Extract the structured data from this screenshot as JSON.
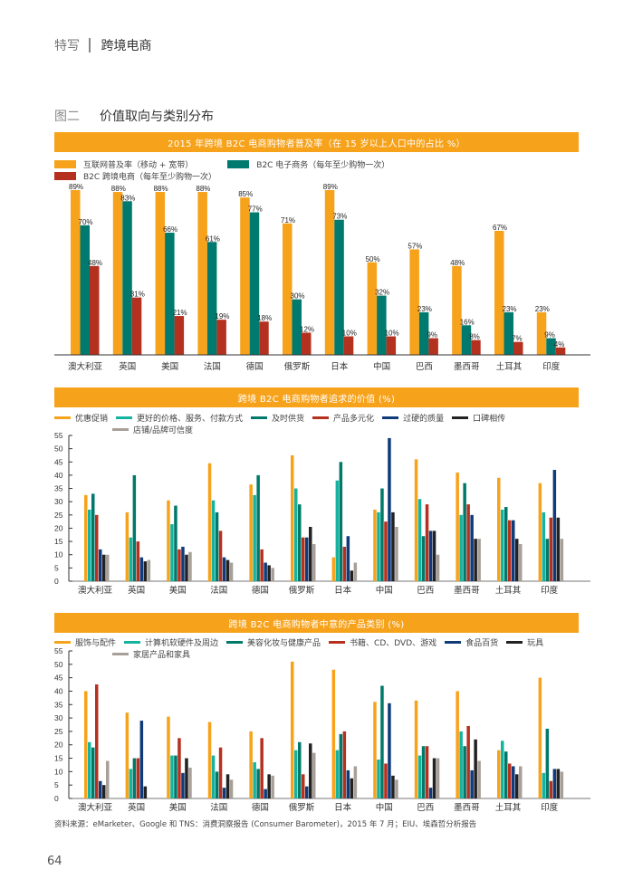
{
  "header": {
    "section": "特写",
    "topic": "跨境电商"
  },
  "figure": {
    "number": "图二",
    "title": "价值取向与类别分布"
  },
  "source": "资料来源：eMarketer、Google 和 TNS：消费洞察报告 (Consumer Barometer)，2015 年 7 月；EIU、埃森哲分析报告",
  "page_number": "64",
  "chart_data": [
    {
      "type": "bar",
      "title": "2015 年跨境 B2C 电商购物者普及率（在 15 岁以上人口中的占比 %）",
      "categories": [
        "澳大利亚",
        "英国",
        "美国",
        "法国",
        "德国",
        "俄罗斯",
        "日本",
        "中国",
        "巴西",
        "墨西哥",
        "土耳其",
        "印度"
      ],
      "ylim": [
        0,
        100
      ],
      "value_suffix": "%",
      "legend_style": "box",
      "series": [
        {
          "name": "互联网普及率（移动 + 宽带）",
          "color": "#f7a21b",
          "values": [
            89,
            88,
            88,
            88,
            85,
            71,
            89,
            50,
            57,
            48,
            67,
            23
          ]
        },
        {
          "name": "B2C 电子商务（每年至少购物一次）",
          "color": "#007a6e",
          "values": [
            70,
            83,
            66,
            61,
            77,
            30,
            73,
            32,
            23,
            16,
            23,
            9
          ]
        },
        {
          "name": "B2C 跨境电商（每年至少购物一次）",
          "color": "#b5311f",
          "values": [
            48,
            31,
            21,
            19,
            18,
            12,
            10,
            10,
            9,
            8,
            7,
            4
          ]
        }
      ]
    },
    {
      "type": "bar",
      "title": "跨境 B2C 电商购物者追求的价值 (%)",
      "categories": [
        "澳大利亚",
        "英国",
        "美国",
        "法国",
        "德国",
        "俄罗斯",
        "日本",
        "中国",
        "巴西",
        "墨西哥",
        "土耳其",
        "印度"
      ],
      "ylim": [
        0,
        55
      ],
      "yticks": [
        0,
        5,
        10,
        15,
        20,
        25,
        30,
        35,
        40,
        45,
        50,
        55
      ],
      "legend_style": "line",
      "series": [
        {
          "name": "优惠促销",
          "color": "#f7a21b",
          "values": [
            32.5,
            26,
            30.5,
            44.5,
            36.5,
            47.5,
            9,
            27,
            46,
            41,
            39,
            37
          ]
        },
        {
          "name": "更好的价格、服务、付款方式",
          "color": "#14b3a0",
          "values": [
            27,
            16.5,
            21.5,
            30.5,
            32.5,
            35,
            38,
            26,
            31,
            25,
            27,
            26
          ]
        },
        {
          "name": "及时供货",
          "color": "#00796b",
          "values": [
            33,
            40,
            28.5,
            26,
            40,
            29,
            45,
            35,
            17,
            37,
            28,
            16
          ]
        },
        {
          "name": "产品多元化",
          "color": "#b5311f",
          "values": [
            25,
            15,
            12,
            19,
            12,
            16.5,
            13,
            22.5,
            29,
            29,
            23,
            24
          ]
        },
        {
          "name": "过硬的质量",
          "color": "#0f3b7a",
          "values": [
            12,
            9,
            13,
            9,
            7,
            16.5,
            17,
            54,
            19,
            25,
            23,
            42
          ]
        },
        {
          "name": "口碑相传",
          "color": "#222222",
          "values": [
            10,
            7.5,
            10,
            8,
            6,
            20.5,
            4,
            26,
            19,
            16,
            16,
            24
          ]
        },
        {
          "name": "店铺/品牌可信度",
          "color": "#a8a098",
          "values": [
            10,
            8,
            11,
            7,
            5,
            14,
            7,
            20.5,
            10,
            16,
            14,
            16
          ]
        }
      ]
    },
    {
      "type": "bar",
      "title": "跨境 B2C 电商购物者中意的产品类别 (%)",
      "categories": [
        "澳大利亚",
        "英国",
        "美国",
        "法国",
        "德国",
        "俄罗斯",
        "日本",
        "中国",
        "巴西",
        "墨西哥",
        "土耳其",
        "印度"
      ],
      "ylim": [
        0,
        55
      ],
      "yticks": [
        0,
        5,
        10,
        15,
        20,
        25,
        30,
        35,
        40,
        45,
        50,
        55
      ],
      "legend_style": "line",
      "series": [
        {
          "name": "服饰与配件",
          "color": "#f7a21b",
          "values": [
            40,
            32,
            30.5,
            28.5,
            25,
            51,
            48,
            36,
            36.5,
            40,
            18,
            45
          ]
        },
        {
          "name": "计算机软硬件及周边",
          "color": "#14b3a0",
          "values": [
            21,
            11,
            16,
            16,
            13.5,
            18,
            18,
            14.5,
            16,
            25,
            21.5,
            9.5
          ]
        },
        {
          "name": "美容化妆与健康产品",
          "color": "#00796b",
          "values": [
            19,
            15,
            16,
            10,
            11,
            21,
            24,
            42,
            19.5,
            19.5,
            17.5,
            26
          ]
        },
        {
          "name": "书籍、CD、DVD、游戏",
          "color": "#b5311f",
          "values": [
            42.5,
            15,
            22.5,
            19,
            22.5,
            9,
            25,
            13,
            19.5,
            27,
            13,
            6.5
          ]
        },
        {
          "name": "食品百货",
          "color": "#0f3b7a",
          "values": [
            6.5,
            29,
            9.5,
            4,
            3.5,
            4.5,
            10.5,
            35.5,
            4,
            10.5,
            12,
            11
          ]
        },
        {
          "name": "玩具",
          "color": "#222222",
          "values": [
            5,
            4.5,
            15,
            9,
            9,
            20.5,
            7.5,
            8.5,
            15,
            22,
            9,
            11
          ]
        },
        {
          "name": "家居产品和家具",
          "color": "#a8a098",
          "values": [
            14,
            0,
            11.5,
            7,
            8.5,
            17,
            12,
            7,
            15,
            14,
            12,
            10
          ]
        }
      ]
    }
  ]
}
